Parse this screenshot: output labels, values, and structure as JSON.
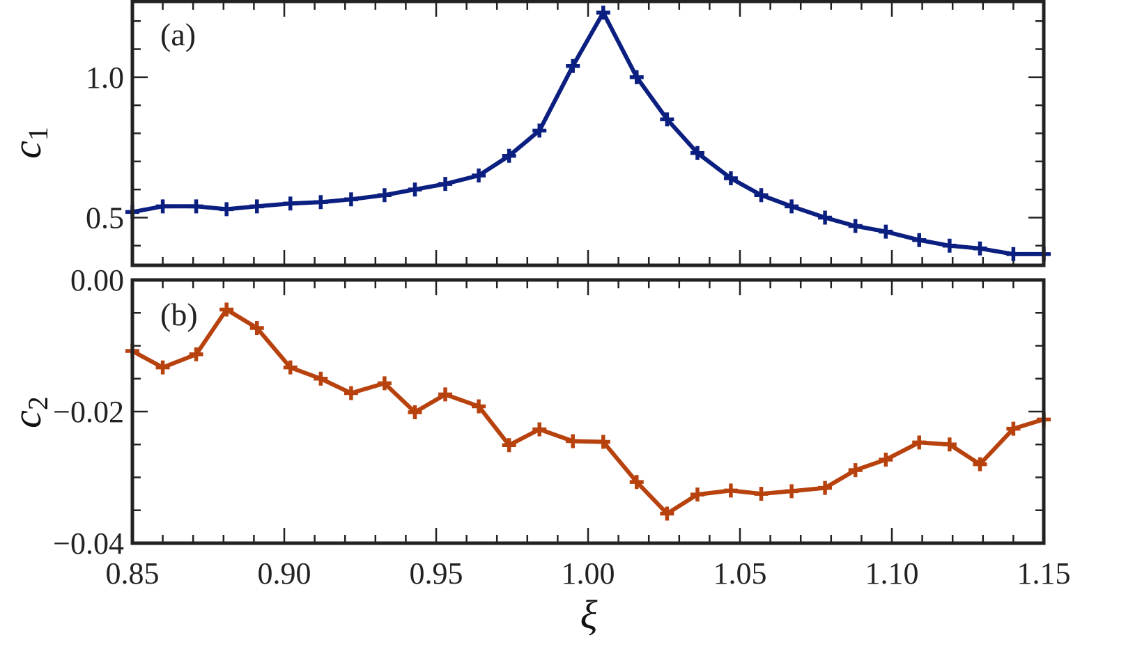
{
  "chart_data": [
    {
      "type": "line",
      "panel_label": "(a)",
      "ylabel": "c",
      "ylabel_sub": "1",
      "xlim": [
        0.85,
        1.15
      ],
      "ylim": [
        0.33,
        1.27
      ],
      "yticks": [
        0.5,
        1.0
      ],
      "ytick_labels": [
        "0.5",
        "1.0"
      ],
      "grid": false,
      "marker": "plus",
      "color": "#0b1f80",
      "x": [
        0.85,
        0.86,
        0.871,
        0.881,
        0.891,
        0.902,
        0.912,
        0.922,
        0.933,
        0.943,
        0.953,
        0.964,
        0.974,
        0.984,
        0.995,
        1.005,
        1.016,
        1.026,
        1.036,
        1.047,
        1.057,
        1.067,
        1.078,
        1.088,
        1.098,
        1.109,
        1.119,
        1.129,
        1.14,
        1.15
      ],
      "y": [
        0.52,
        0.54,
        0.54,
        0.53,
        0.54,
        0.55,
        0.555,
        0.565,
        0.58,
        0.6,
        0.62,
        0.65,
        0.72,
        0.81,
        1.04,
        1.23,
        1.0,
        0.85,
        0.73,
        0.64,
        0.58,
        0.54,
        0.5,
        0.47,
        0.45,
        0.42,
        0.4,
        0.39,
        0.37,
        0.37
      ]
    },
    {
      "type": "line",
      "panel_label": "(b)",
      "ylabel": "c",
      "ylabel_sub": "2",
      "xlabel": "ξ",
      "xlim": [
        0.85,
        1.15
      ],
      "ylim": [
        -0.04,
        0.0
      ],
      "yticks": [
        -0.04,
        -0.02,
        0.0
      ],
      "ytick_labels": [
        "−0.04",
        "−0.02",
        "0.00"
      ],
      "xticks": [
        0.85,
        0.9,
        0.95,
        1.0,
        1.05,
        1.1,
        1.15
      ],
      "xtick_labels": [
        "0.85",
        "0.90",
        "0.95",
        "1.00",
        "1.05",
        "1.10",
        "1.15"
      ],
      "grid": false,
      "marker": "plus",
      "color": "#b8420e",
      "x": [
        0.85,
        0.86,
        0.871,
        0.881,
        0.891,
        0.902,
        0.912,
        0.922,
        0.933,
        0.943,
        0.953,
        0.964,
        0.974,
        0.984,
        0.995,
        1.005,
        1.016,
        1.026,
        1.036,
        1.047,
        1.057,
        1.067,
        1.078,
        1.088,
        1.098,
        1.109,
        1.119,
        1.129,
        1.14,
        1.15
      ],
      "y": [
        -0.0108,
        -0.0133,
        -0.0113,
        -0.0045,
        -0.0073,
        -0.0133,
        -0.015,
        -0.0172,
        -0.0157,
        -0.0201,
        -0.0174,
        -0.0192,
        -0.0251,
        -0.0227,
        -0.0245,
        -0.0246,
        -0.0307,
        -0.0355,
        -0.0326,
        -0.032,
        -0.0325,
        -0.0321,
        -0.0316,
        -0.0289,
        -0.0273,
        -0.0247,
        -0.025,
        -0.028,
        -0.0226,
        -0.0212
      ]
    }
  ]
}
